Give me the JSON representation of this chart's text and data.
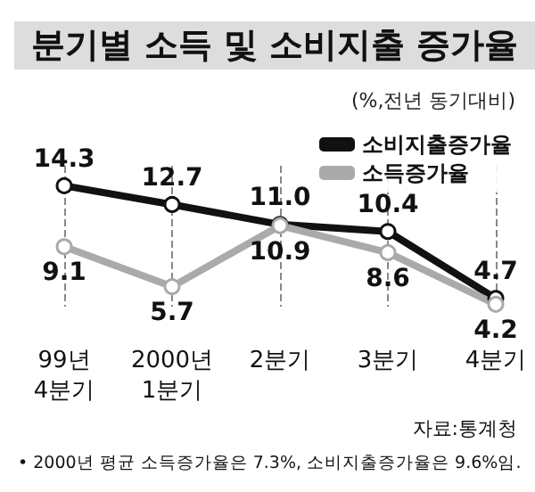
{
  "chart_data": {
    "type": "line",
    "title": "분기별 소득 및 소비지출 증가율",
    "subtitle": "(%,전년 동기대비)",
    "categories": [
      "99년\n4분기",
      "2000년\n1분기",
      "2분기",
      "3분기",
      "4분기"
    ],
    "series": [
      {
        "name": "소비지출증가율",
        "color": "#111111",
        "values": [
          14.3,
          12.7,
          11.0,
          10.4,
          4.7
        ],
        "value_labels": [
          "14.3",
          "12.7",
          "11.0",
          "10.4",
          "4.7"
        ]
      },
      {
        "name": "소득증가율",
        "color": "#aaaaaa",
        "values": [
          9.1,
          5.7,
          10.9,
          8.6,
          4.2
        ],
        "value_labels": [
          "9.1",
          "5.7",
          "10.9",
          "8.6",
          "4.2"
        ]
      }
    ],
    "grid": "x",
    "legend": "top right",
    "marker": "circle",
    "line_style": "solid",
    "annotations": [
      "자료:통계청",
      "• 2000년 평균 소득증가율은 7.3%, 소비지출증가율은 9.6%임."
    ]
  }
}
